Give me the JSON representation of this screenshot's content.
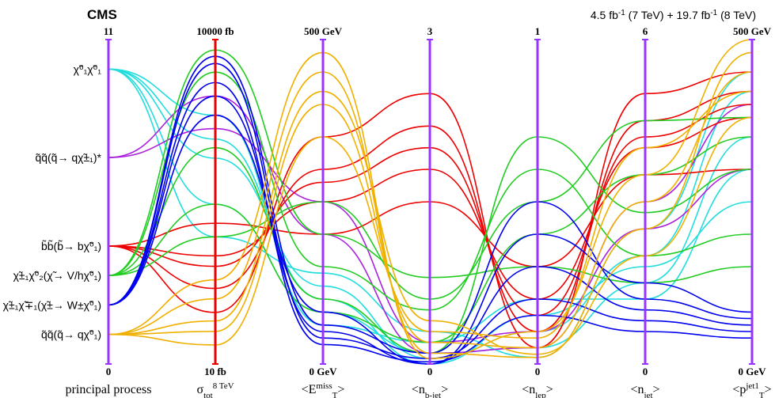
{
  "chart_data": {
    "type": "parallel",
    "title": "CMS",
    "subtitle": [
      "4.5 fb",
      "-1",
      " (7 TeV) + 19.7 fb",
      "-1",
      " (8 TeV)"
    ],
    "axes": [
      {
        "label": [
          {
            "t": "principal process"
          }
        ],
        "lim": [
          0,
          11
        ],
        "ticks": [
          0,
          11
        ],
        "color": "#9933ff"
      },
      {
        "label": [
          {
            "t": "σ"
          },
          {
            "sub": "tot"
          },
          {
            "sup": "8 TeV"
          }
        ],
        "lim": [
          10,
          10000
        ],
        "log": true,
        "ticks": [
          {
            "value": 10,
            "label": "10 fb"
          },
          {
            "value": 10000,
            "label": "10000 fb"
          }
        ],
        "color": "#ee0000"
      },
      {
        "label": [
          {
            "t": "<E"
          },
          {
            "sup": "miss"
          },
          {
            "sub": "T"
          },
          {
            "t": ">"
          }
        ],
        "lim": [
          0,
          500
        ],
        "ticks": [
          {
            "value": 0,
            "label": "0 GeV"
          },
          {
            "value": 500,
            "label": "500 GeV"
          }
        ],
        "color": "#9933ff"
      },
      {
        "label": [
          {
            "t": "<n"
          },
          {
            "sub": "b-jet"
          },
          {
            "t": ">"
          }
        ],
        "lim": [
          0,
          3
        ],
        "ticks": [
          0,
          3
        ],
        "color": "#9933ff"
      },
      {
        "label": [
          {
            "t": "<n"
          },
          {
            "sub": "lep"
          },
          {
            "t": ">"
          }
        ],
        "lim": [
          0,
          1
        ],
        "ticks": [
          0,
          1
        ],
        "color": "#9933ff"
      },
      {
        "label": [
          {
            "t": "<n"
          },
          {
            "sub": "jet"
          },
          {
            "t": ">"
          }
        ],
        "lim": [
          0,
          6
        ],
        "ticks": [
          0,
          6
        ],
        "color": "#9933ff"
      },
      {
        "label": [
          {
            "t": "<p"
          },
          {
            "sup": "jet1"
          },
          {
            "sub": "T"
          },
          {
            "t": ">"
          }
        ],
        "lim": [
          0,
          500
        ],
        "ticks": [
          {
            "value": 0,
            "label": "0 GeV"
          },
          {
            "value": 500,
            "label": "500 GeV"
          }
        ],
        "color": "#9933ff"
      }
    ],
    "processes": [
      {
        "label": "χ̃⁰₁χ̃⁰₁",
        "value": 10,
        "color": "#22dddd",
        "lines": [
          [
            300,
            80,
            0.1,
            0.05,
            1.5,
            350
          ],
          [
            800,
            120,
            0.05,
            0.1,
            2.0,
            420
          ],
          [
            2000,
            60,
            0.2,
            0.2,
            1.2,
            300
          ],
          [
            150,
            140,
            0.3,
            0.02,
            2.5,
            450
          ],
          [
            1200,
            100,
            0,
            0.15,
            1.8,
            250
          ]
        ]
      },
      {
        "label": "q̃q̃(q̃→ qχ̃±₁)*",
        "value": 7,
        "color": "#aa22dd",
        "lines": [
          [
            3000,
            200,
            0.1,
            0.05,
            3.0,
            400
          ],
          [
            1500,
            250,
            0.2,
            0.1,
            2.5,
            300
          ]
        ]
      },
      {
        "label": "b̃b̃(b̃→ bχ̃⁰₁)",
        "value": 4,
        "color": "#ee0000",
        "lines": [
          [
            50,
            300,
            2.2,
            0.1,
            4.5,
            420
          ],
          [
            100,
            250,
            1.8,
            0.2,
            4.0,
            380
          ],
          [
            30,
            350,
            2.5,
            0.05,
            5.0,
            450
          ],
          [
            200,
            200,
            1.5,
            0.3,
            3.5,
            300
          ],
          [
            80,
            280,
            2.0,
            0.15,
            4.2,
            400
          ]
        ]
      },
      {
        "label": "χ̃±₁χ̃⁰₂(χ̃→ V/hχ̃⁰₁)",
        "value": 3,
        "color": "#22cc22",
        "lines": [
          [
            5000,
            150,
            0.5,
            0.6,
            2.0,
            200
          ],
          [
            300,
            80,
            0.2,
            0.4,
            3.5,
            350
          ],
          [
            8000,
            200,
            0.8,
            0.3,
            1.5,
            150
          ],
          [
            1000,
            100,
            0.1,
            0.7,
            2.8,
            300
          ],
          [
            150,
            250,
            0.6,
            0.5,
            4.5,
            380
          ]
        ]
      },
      {
        "label": "χ̃±₁χ̃∓₁(χ̃±→ W±χ̃⁰₁)",
        "value": 2,
        "color": "#0000ee",
        "lines": [
          [
            3000,
            50,
            0,
            0.3,
            1.0,
            60
          ],
          [
            6000,
            40,
            0.05,
            0.2,
            0.8,
            50
          ],
          [
            2000,
            80,
            0,
            0.4,
            1.5,
            80
          ],
          [
            4000,
            30,
            0.02,
            0.15,
            0.6,
            40
          ],
          [
            7000,
            60,
            0.1,
            0.5,
            1.2,
            70
          ]
        ]
      },
      {
        "label": "q̃q̃(q̃→ qχ̃⁰₁)",
        "value": 1,
        "color": "#f0b000",
        "lines": [
          [
            20,
            400,
            0.2,
            0.05,
            3.0,
            450
          ],
          [
            40,
            450,
            0.1,
            0.02,
            2.5,
            480
          ],
          [
            15,
            350,
            0.3,
            0.08,
            4.0,
            420
          ],
          [
            60,
            480,
            0.05,
            0.1,
            3.5,
            500
          ],
          [
            25,
            420,
            0.4,
            0.03,
            2.0,
            380
          ]
        ]
      }
    ]
  }
}
